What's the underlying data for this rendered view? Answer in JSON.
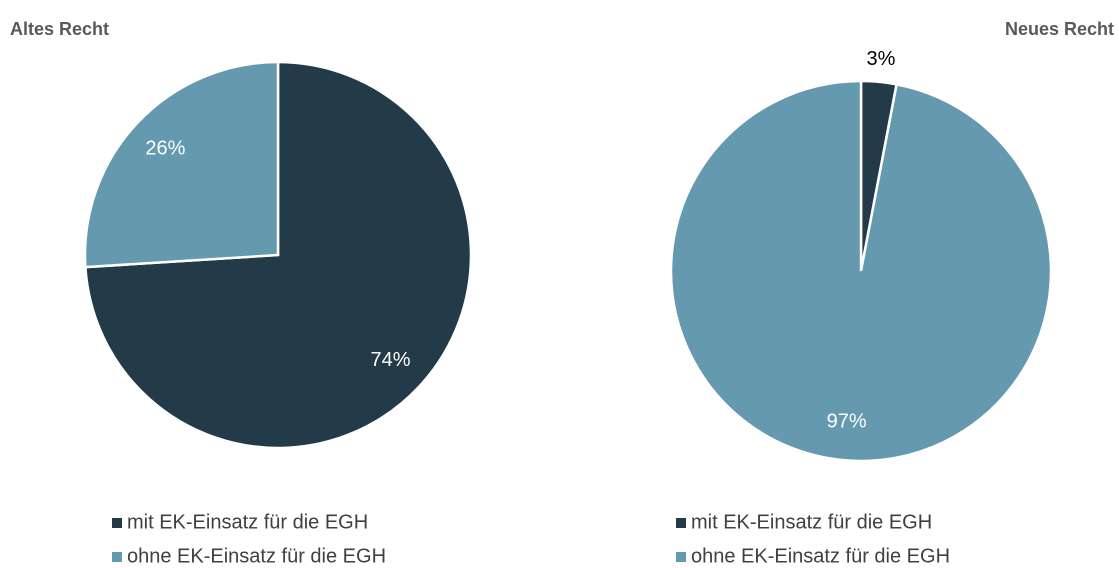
{
  "chart_data": [
    {
      "type": "pie",
      "title": "Altes Recht",
      "categories": [
        "mit EK-Einsatz für die EGH",
        "ohne EK-Einsatz für die EGH"
      ],
      "values": [
        74,
        26
      ],
      "value_labels": [
        "74%",
        "26%"
      ],
      "colors": [
        "#233a48",
        "#6499b0"
      ]
    },
    {
      "type": "pie",
      "title": "Neues Recht",
      "categories": [
        "mit EK-Einsatz für die EGH",
        "ohne EK-Einsatz für die EGH"
      ],
      "values": [
        3,
        97
      ],
      "value_labels": [
        "3%",
        "97%"
      ],
      "colors": [
        "#233a48",
        "#6499b0"
      ]
    }
  ]
}
